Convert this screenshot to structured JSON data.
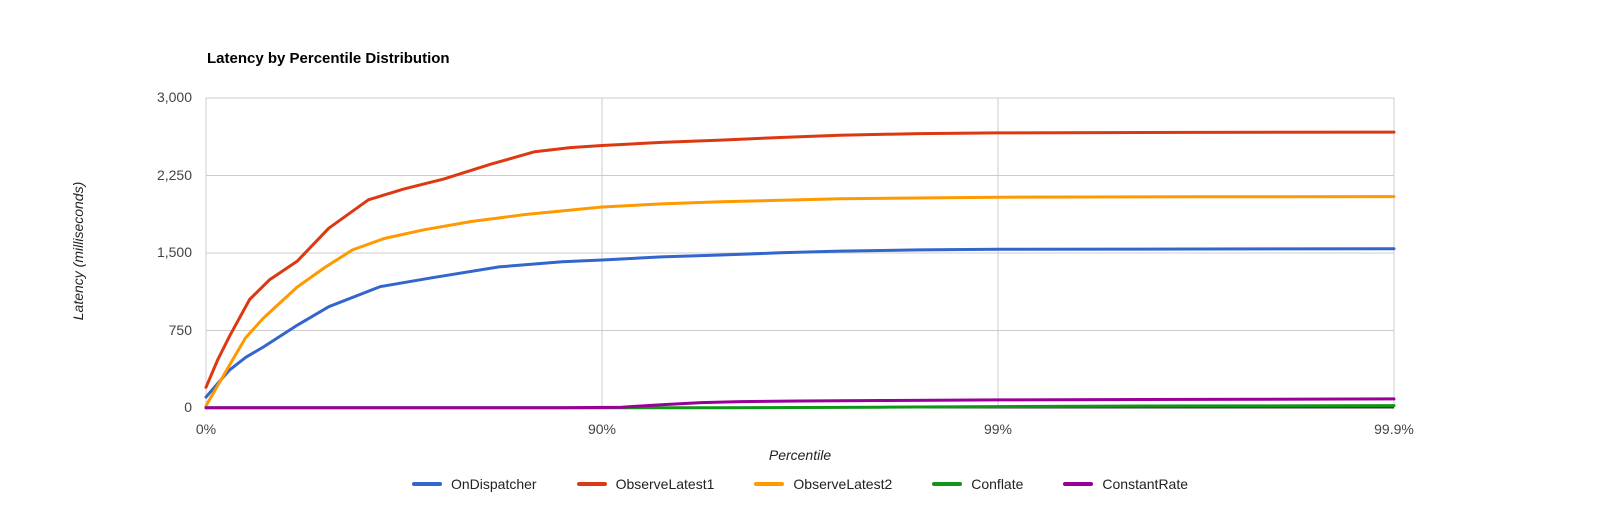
{
  "chart_data": {
    "type": "line",
    "title": "Latency by Percentile Distribution",
    "xlabel": "Percentile",
    "ylabel": "Latency (milliseconds)",
    "x_scale": "log-percentile (nines = log10(1/(1-p)))",
    "xlim_nines": [
      0,
      3
    ],
    "ylim": [
      0,
      3000
    ],
    "grid": true,
    "legend_position": "bottom",
    "background": "#ffffff",
    "grid_color": "#cccccc",
    "baseline_color": "#333333",
    "tick_color": "#444444",
    "x_ticks": [
      {
        "label": "0%",
        "percentile": 0,
        "nines": 0
      },
      {
        "label": "90%",
        "percentile": 90,
        "nines": 1
      },
      {
        "label": "99%",
        "percentile": 99,
        "nines": 2
      },
      {
        "label": "99.9%",
        "percentile": 99.9,
        "nines": 3
      }
    ],
    "y_ticks": [
      {
        "label": "3,000",
        "value": 3000
      },
      {
        "label": "2,250",
        "value": 2250
      },
      {
        "label": "1,500",
        "value": 1500
      },
      {
        "label": "750",
        "value": 750
      },
      {
        "label": "0",
        "value": 0
      }
    ],
    "series": [
      {
        "name": "OnDispatcher",
        "color": "#3366CC",
        "points": [
          [
            0,
            105
          ],
          [
            0.03,
            240
          ],
          [
            0.06,
            370
          ],
          [
            0.1,
            490
          ],
          [
            0.145,
            590
          ],
          [
            0.23,
            800
          ],
          [
            0.31,
            980
          ],
          [
            0.44,
            1175
          ],
          [
            0.57,
            1260
          ],
          [
            0.74,
            1365
          ],
          [
            0.9,
            1415
          ],
          [
            1.0,
            1432
          ],
          [
            1.15,
            1462
          ],
          [
            1.3,
            1481
          ],
          [
            1.45,
            1502
          ],
          [
            1.6,
            1518
          ],
          [
            1.8,
            1530
          ],
          [
            2.0,
            1536
          ],
          [
            2.5,
            1539
          ],
          [
            3.0,
            1541
          ]
        ]
      },
      {
        "name": "ObserveLatest1",
        "color": "#DC3912",
        "points": [
          [
            0,
            200
          ],
          [
            0.03,
            470
          ],
          [
            0.06,
            700
          ],
          [
            0.11,
            1050
          ],
          [
            0.16,
            1240
          ],
          [
            0.23,
            1420
          ],
          [
            0.31,
            1740
          ],
          [
            0.41,
            2015
          ],
          [
            0.5,
            2120
          ],
          [
            0.6,
            2215
          ],
          [
            0.72,
            2360
          ],
          [
            0.83,
            2480
          ],
          [
            0.92,
            2520
          ],
          [
            1.0,
            2540
          ],
          [
            1.15,
            2570
          ],
          [
            1.3,
            2593
          ],
          [
            1.45,
            2618
          ],
          [
            1.6,
            2640
          ],
          [
            1.8,
            2655
          ],
          [
            2.0,
            2662
          ],
          [
            2.5,
            2667
          ],
          [
            3.0,
            2670
          ]
        ]
      },
      {
        "name": "ObserveLatest2",
        "color": "#FF9900",
        "points": [
          [
            0,
            20
          ],
          [
            0.03,
            220
          ],
          [
            0.06,
            420
          ],
          [
            0.1,
            680
          ],
          [
            0.145,
            870
          ],
          [
            0.23,
            1170
          ],
          [
            0.3,
            1360
          ],
          [
            0.37,
            1530
          ],
          [
            0.45,
            1640
          ],
          [
            0.55,
            1725
          ],
          [
            0.67,
            1805
          ],
          [
            0.8,
            1870
          ],
          [
            0.92,
            1915
          ],
          [
            1.0,
            1945
          ],
          [
            1.15,
            1975
          ],
          [
            1.3,
            1995
          ],
          [
            1.6,
            2025
          ],
          [
            2.0,
            2040
          ],
          [
            2.5,
            2044
          ],
          [
            3.0,
            2046
          ]
        ]
      },
      {
        "name": "Conflate",
        "color": "#109618",
        "points": [
          [
            0,
            2
          ],
          [
            0.5,
            2
          ],
          [
            1.0,
            2
          ],
          [
            1.3,
            3
          ],
          [
            1.5,
            5
          ],
          [
            1.7,
            8
          ],
          [
            2.0,
            14
          ],
          [
            2.3,
            18
          ],
          [
            2.6,
            20
          ],
          [
            3.0,
            23
          ]
        ]
      },
      {
        "name": "ConstantRate",
        "color": "#990099",
        "points": [
          [
            0,
            2
          ],
          [
            0.5,
            2
          ],
          [
            0.9,
            2
          ],
          [
            1.05,
            8
          ],
          [
            1.15,
            32
          ],
          [
            1.25,
            52
          ],
          [
            1.35,
            62
          ],
          [
            1.5,
            68
          ],
          [
            1.7,
            73
          ],
          [
            2.0,
            78
          ],
          [
            2.5,
            83
          ],
          [
            3.0,
            88
          ]
        ]
      }
    ]
  }
}
